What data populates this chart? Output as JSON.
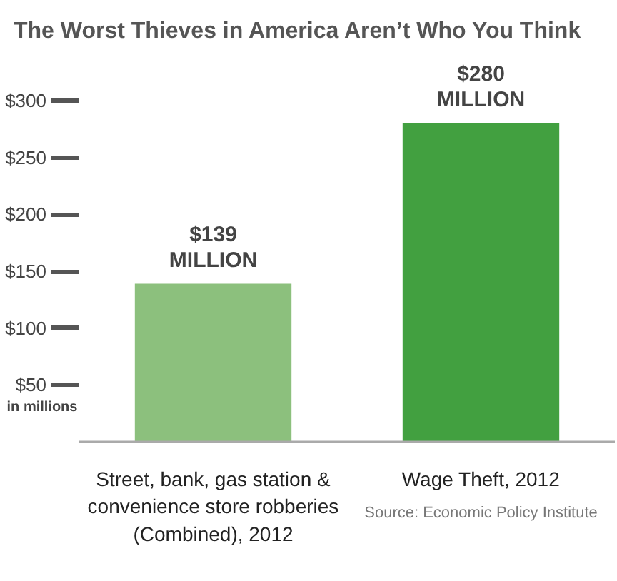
{
  "chart_data": {
    "type": "bar",
    "title": "The Worst Thieves in America Aren’t Who You Think",
    "categories": [
      "Street, bank, gas station & convenience store robberies (Combined), 2012",
      "Wage Theft, 2012"
    ],
    "values": [
      139,
      280
    ],
    "colors": [
      "#8cc07d",
      "#42a040"
    ],
    "value_labels": [
      "$139 MILLION",
      "$280 MILLION"
    ],
    "ylim": [
      0,
      300
    ],
    "yticks": [
      {
        "value": 50,
        "label": "$50"
      },
      {
        "value": 100,
        "label": "$100"
      },
      {
        "value": 150,
        "label": "$150"
      },
      {
        "value": 200,
        "label": "$200"
      },
      {
        "value": 250,
        "label": "$250"
      },
      {
        "value": 300,
        "label": "$300"
      }
    ],
    "annotations": [
      "in millions",
      "Source: Economic Policy Institute"
    ]
  }
}
